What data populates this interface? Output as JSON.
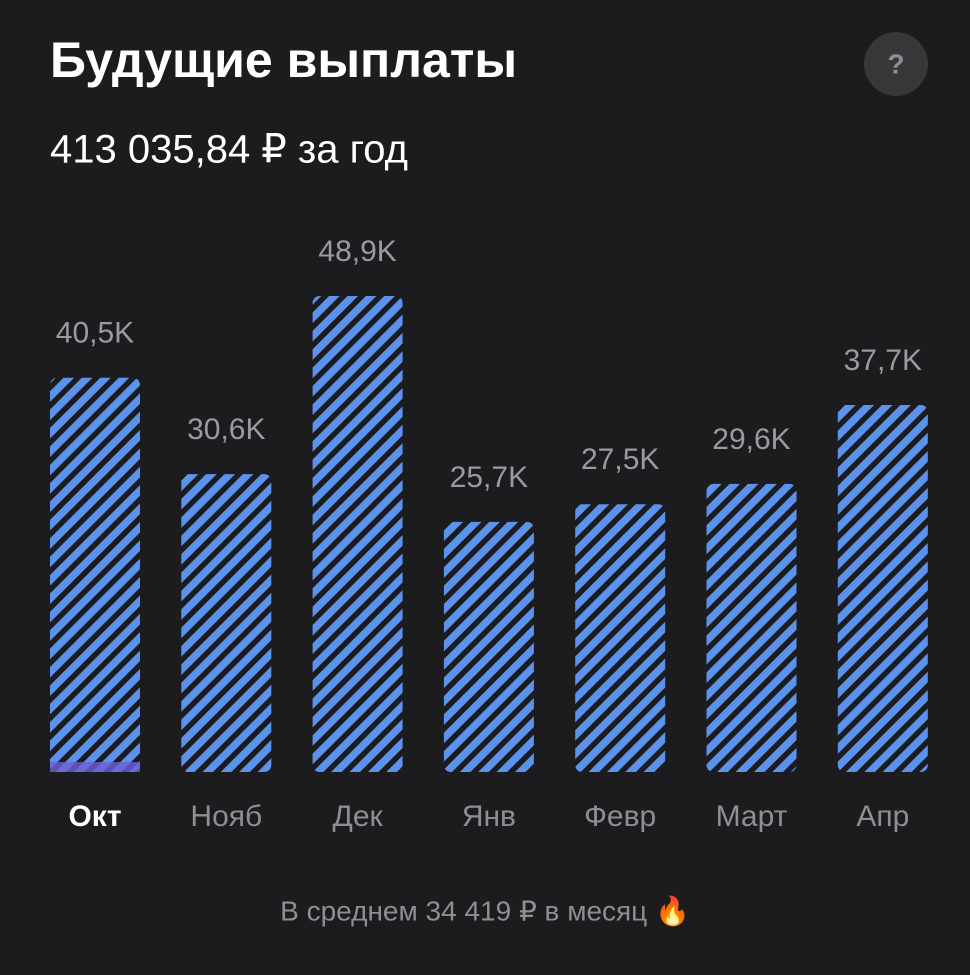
{
  "chart_data": {
    "type": "bar",
    "title": "Будущие выплаты",
    "subtitle": "413 035,84 ₽ за год",
    "categories": [
      "Окт",
      "Нояб",
      "Дек",
      "Янв",
      "Февр",
      "Март",
      "Апр"
    ],
    "values": [
      40500,
      30600,
      48900,
      25700,
      27500,
      29600,
      37700
    ],
    "value_labels": [
      "40,5K",
      "30,6K",
      "48,9K",
      "25,7K",
      "27,5K",
      "29,6K",
      "37,7K"
    ],
    "selected": 0,
    "color": "#5b92ec",
    "footer": "В среднем 34 419 ₽ в месяц 🔥",
    "help": "?"
  }
}
